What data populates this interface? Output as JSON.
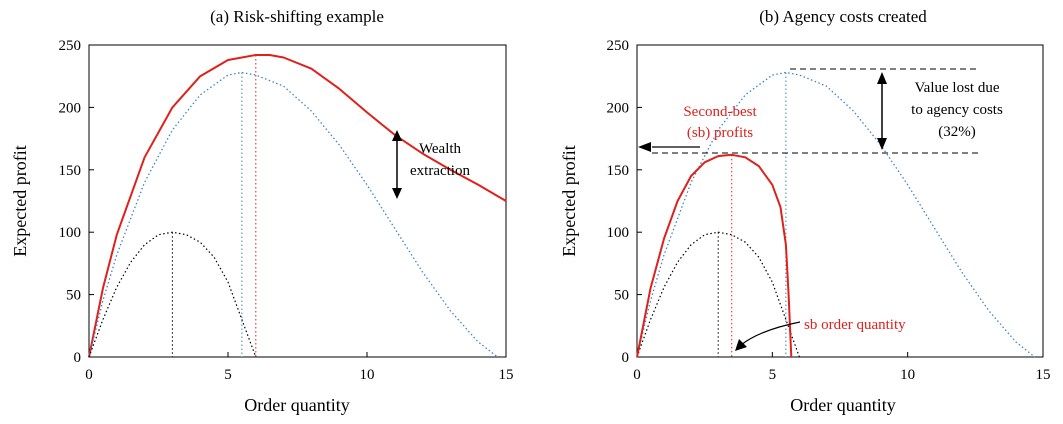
{
  "colors": {
    "red": "#e0201b",
    "blue": "#3b86c8",
    "black": "#000000"
  },
  "chart_data": [
    {
      "type": "line",
      "title": "(a) Risk-shifting example",
      "xlabel": "Order quantity",
      "ylabel": "Expected profit",
      "xlim": [
        0,
        15
      ],
      "ylim": [
        0,
        250
      ],
      "xticks": [
        "0",
        "5",
        "10",
        "15"
      ],
      "yticks": [
        "0",
        "50",
        "100",
        "150",
        "200",
        "250"
      ],
      "series": [
        {
          "style": "solid-red",
          "x": [
            0,
            0.5,
            1,
            2,
            3,
            4,
            5,
            6,
            6.5,
            7,
            8,
            9,
            10,
            11,
            12,
            13,
            14,
            15
          ],
          "y": [
            0,
            55,
            98,
            160,
            200,
            225,
            238,
            242,
            242,
            240,
            231,
            215,
            196,
            178,
            163,
            150,
            138,
            125
          ]
        },
        {
          "style": "dotted-blue",
          "x": [
            0,
            0.5,
            1,
            2,
            3,
            4,
            5,
            5.5,
            6,
            7,
            8,
            9,
            10,
            11,
            12,
            13,
            14,
            14.7
          ],
          "y": [
            0,
            45,
            82,
            140,
            182,
            210,
            226,
            228,
            226,
            217,
            197,
            170,
            138,
            103,
            68,
            37,
            12,
            0
          ]
        },
        {
          "style": "dotted-black",
          "x": [
            0,
            0.5,
            1,
            1.5,
            2,
            2.5,
            3,
            3.5,
            4,
            4.5,
            5,
            5.5,
            6
          ],
          "y": [
            0,
            30,
            56,
            76,
            90,
            98,
            100,
            98,
            92,
            80,
            60,
            30,
            0
          ]
        }
      ],
      "annotations": {
        "wealth": [
          "Wealth",
          "extraction"
        ]
      }
    },
    {
      "type": "line",
      "title": "(b) Agency costs created",
      "xlabel": "Order quantity",
      "ylabel": "Expected profit",
      "xlim": [
        0,
        15
      ],
      "ylim": [
        0,
        250
      ],
      "xticks": [
        "0",
        "5",
        "10",
        "15"
      ],
      "yticks": [
        "0",
        "50",
        "100",
        "150",
        "200",
        "250"
      ],
      "series": [
        {
          "style": "dotted-blue",
          "x": [
            0,
            0.5,
            1,
            2,
            3,
            4,
            5,
            5.5,
            6,
            7,
            8,
            9,
            10,
            11,
            12,
            13,
            14,
            14.7
          ],
          "y": [
            0,
            45,
            82,
            140,
            182,
            210,
            226,
            228,
            226,
            217,
            197,
            170,
            138,
            103,
            68,
            37,
            12,
            0
          ]
        },
        {
          "style": "dotted-black",
          "x": [
            0,
            0.5,
            1,
            1.5,
            2,
            2.5,
            3,
            3.5,
            4,
            4.5,
            5,
            5.5,
            6
          ],
          "y": [
            0,
            30,
            56,
            76,
            90,
            98,
            100,
            98,
            92,
            80,
            60,
            30,
            0
          ]
        },
        {
          "style": "solid-red",
          "x": [
            0,
            0.5,
            1,
            1.5,
            2,
            2.5,
            3,
            3.5,
            4,
            4.5,
            5,
            5.3,
            5.5,
            5.6,
            5.7
          ],
          "y": [
            0,
            55,
            95,
            125,
            145,
            156,
            161,
            162,
            160,
            153,
            138,
            120,
            90,
            50,
            0
          ]
        }
      ],
      "annotations": {
        "value_lost": [
          "Value lost due",
          "to agency costs",
          "(32%)"
        ],
        "second_best": [
          "Second-best",
          "(sb) profits"
        ],
        "sb_order": "sb order quantity"
      }
    }
  ]
}
